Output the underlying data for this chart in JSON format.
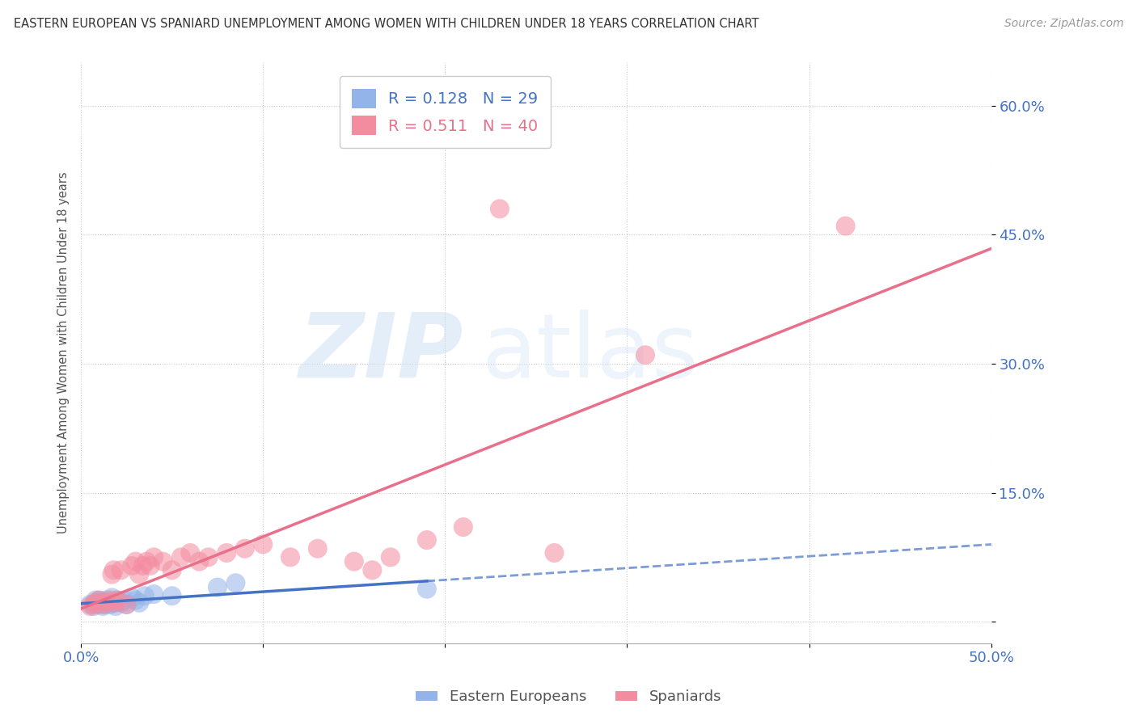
{
  "title": "EASTERN EUROPEAN VS SPANIARD UNEMPLOYMENT AMONG WOMEN WITH CHILDREN UNDER 18 YEARS CORRELATION CHART",
  "source": "Source: ZipAtlas.com",
  "ylabel": "Unemployment Among Women with Children Under 18 years",
  "xlim": [
    0.0,
    0.5
  ],
  "ylim": [
    -0.025,
    0.65
  ],
  "yticks": [
    0.0,
    0.15,
    0.3,
    0.45,
    0.6
  ],
  "ytick_labels": [
    "",
    "15.0%",
    "30.0%",
    "45.0%",
    "60.0%"
  ],
  "xticks": [
    0.0,
    0.1,
    0.2,
    0.3,
    0.4,
    0.5
  ],
  "xtick_labels": [
    "0.0%",
    "",
    "",
    "",
    "",
    "50.0%"
  ],
  "legend_labels": [
    "Eastern Europeans",
    "Spaniards"
  ],
  "R_eastern": 0.128,
  "N_eastern": 29,
  "R_spaniards": 0.511,
  "N_spaniards": 40,
  "eastern_color": "#92b4e8",
  "spaniard_color": "#f48ca0",
  "eastern_line_color": "#4472c4",
  "spaniard_line_color": "#e8708a",
  "background_color": "#ffffff",
  "eastern_x": [
    0.005,
    0.007,
    0.008,
    0.008,
    0.009,
    0.01,
    0.01,
    0.012,
    0.012,
    0.013,
    0.014,
    0.015,
    0.016,
    0.017,
    0.018,
    0.019,
    0.02,
    0.022,
    0.024,
    0.025,
    0.028,
    0.03,
    0.032,
    0.035,
    0.04,
    0.05,
    0.075,
    0.085,
    0.19
  ],
  "eastern_y": [
    0.02,
    0.018,
    0.022,
    0.025,
    0.02,
    0.022,
    0.025,
    0.018,
    0.022,
    0.02,
    0.025,
    0.022,
    0.02,
    0.028,
    0.022,
    0.018,
    0.025,
    0.022,
    0.025,
    0.02,
    0.028,
    0.025,
    0.022,
    0.03,
    0.032,
    0.03,
    0.04,
    0.045,
    0.038
  ],
  "spaniard_x": [
    0.005,
    0.007,
    0.008,
    0.01,
    0.012,
    0.014,
    0.016,
    0.017,
    0.018,
    0.019,
    0.02,
    0.022,
    0.025,
    0.028,
    0.03,
    0.032,
    0.034,
    0.036,
    0.038,
    0.04,
    0.045,
    0.05,
    0.055,
    0.06,
    0.065,
    0.07,
    0.08,
    0.09,
    0.1,
    0.115,
    0.13,
    0.15,
    0.16,
    0.17,
    0.19,
    0.21,
    0.23,
    0.26,
    0.31,
    0.42
  ],
  "spaniard_y": [
    0.018,
    0.02,
    0.022,
    0.025,
    0.02,
    0.022,
    0.025,
    0.055,
    0.06,
    0.022,
    0.025,
    0.06,
    0.02,
    0.065,
    0.07,
    0.055,
    0.065,
    0.07,
    0.065,
    0.075,
    0.07,
    0.06,
    0.075,
    0.08,
    0.07,
    0.075,
    0.08,
    0.085,
    0.09,
    0.075,
    0.085,
    0.07,
    0.06,
    0.075,
    0.095,
    0.11,
    0.48,
    0.08,
    0.31,
    0.46
  ]
}
